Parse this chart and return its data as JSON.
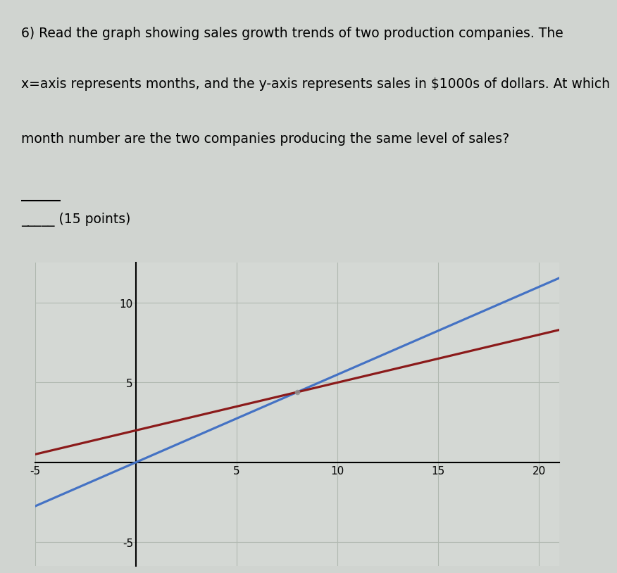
{
  "line1": "6) Read the graph showing sales growth trends of two production companies. The",
  "line2": "x=axis represents months, and the y-axis represents sales in $1000s of dollars. At which",
  "line3": "month number are the two companies producing the same level of sales?",
  "blank_label": "_____ (15 points)",
  "blue_line": {
    "slope": 0.55,
    "intercept": 0,
    "color": "#4472c4",
    "linewidth": 2.3
  },
  "red_line": {
    "slope": 0.3,
    "intercept": 2.0,
    "color": "#8b1a1a",
    "linewidth": 2.3
  },
  "xmin": -5,
  "xmax": 21,
  "ymin": -6.5,
  "ymax": 12.5,
  "xticks": [
    -5,
    0,
    5,
    10,
    15,
    20
  ],
  "yticks": [
    -5,
    0,
    5,
    10
  ],
  "grid_color": "#b0b8b0",
  "plot_bg_color": "#d4d8d4",
  "outer_bg_color": "#d0d4d0",
  "axes_color": "#000000",
  "intersection_x": 8,
  "intersection_y": 4.4,
  "text_fontsize": 13.5,
  "tick_fontsize": 11
}
